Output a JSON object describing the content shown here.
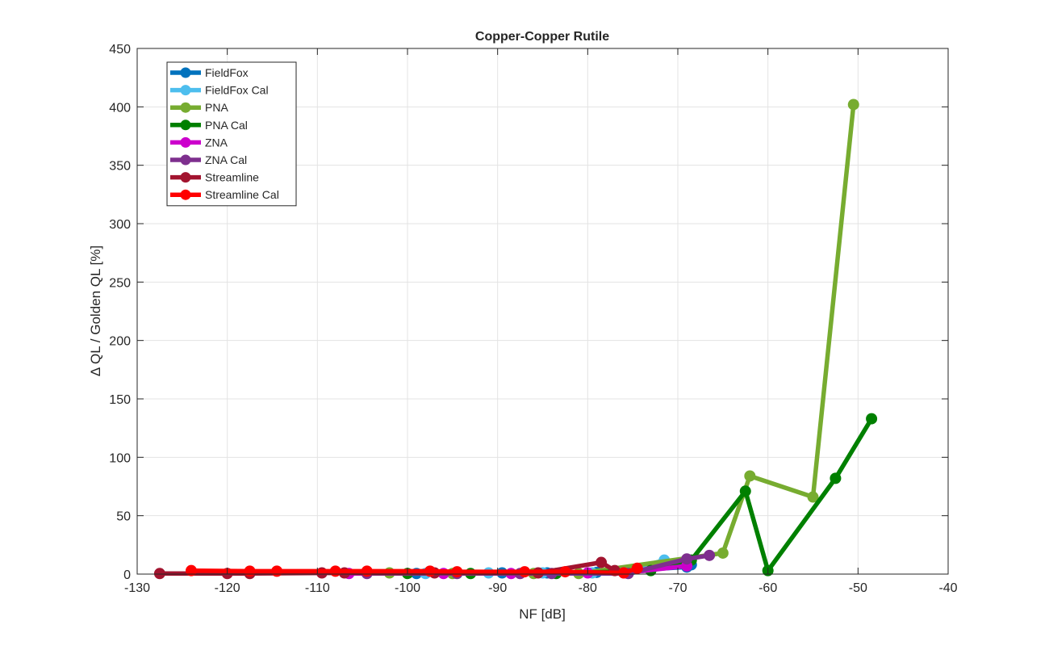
{
  "chart_data": {
    "type": "line",
    "title": "Copper-Copper Rutile",
    "xlabel": "NF [dB]",
    "ylabel": "Δ QL / Golden QL [%]",
    "xlim": [
      -130,
      -40
    ],
    "ylim": [
      0,
      450
    ],
    "xticks": [
      -130,
      -120,
      -110,
      -100,
      -90,
      -80,
      -70,
      -60,
      -50,
      -40
    ],
    "yticks": [
      0,
      50,
      100,
      150,
      200,
      250,
      300,
      350,
      400,
      450
    ],
    "grid": true,
    "legend_position": "top-left",
    "series": [
      {
        "name": "FieldFox",
        "color": "#0072BD",
        "x": [
          -99,
          -89.5,
          -84.5,
          -79,
          -69,
          -68.5
        ],
        "y": [
          0.5,
          1,
          1,
          1.5,
          6,
          8
        ]
      },
      {
        "name": "FieldFox Cal",
        "color": "#4DBEEE",
        "x": [
          -98,
          -91,
          -85,
          -79.5,
          -75,
          -71.5
        ],
        "y": [
          0.5,
          1,
          1,
          1,
          4,
          12
        ]
      },
      {
        "name": "PNA",
        "color": "#77AC30",
        "x": [
          -102,
          -95,
          -86,
          -81,
          -65,
          -62,
          -55,
          -50.5
        ],
        "y": [
          1,
          0.5,
          0.5,
          0.5,
          18,
          84,
          66,
          402
        ]
      },
      {
        "name": "PNA Cal",
        "color": "#008000",
        "x": [
          -100,
          -93,
          -83.5,
          -73,
          -68.5,
          -62.5,
          -60,
          -52.5,
          -48.5
        ],
        "y": [
          0.5,
          0.5,
          0.5,
          3,
          12,
          71,
          3,
          82,
          133
        ]
      },
      {
        "name": "ZNA",
        "color": "#CC00CC",
        "x": [
          -106.5,
          -96,
          -88.5,
          -80,
          -76,
          -69
        ],
        "y": [
          0.5,
          0.5,
          0.5,
          1,
          1,
          7
        ]
      },
      {
        "name": "ZNA Cal",
        "color": "#7E2F8E",
        "x": [
          -104.5,
          -94.5,
          -87.5,
          -84,
          -75.5,
          -69,
          -66.5
        ],
        "y": [
          0.5,
          0.5,
          0.5,
          0.5,
          0.5,
          13,
          16
        ]
      },
      {
        "name": "Streamline",
        "color": "#A2142F",
        "x": [
          -127.5,
          -120,
          -117.5,
          -109.5,
          -107,
          -97,
          -85.5,
          -78.5,
          -77
        ],
        "y": [
          0.5,
          0.5,
          0.5,
          1,
          1,
          1,
          1,
          10,
          3
        ]
      },
      {
        "name": "Streamline Cal",
        "color": "#FF0000",
        "x": [
          -124,
          -117.5,
          -114.5,
          -108,
          -104.5,
          -97.5,
          -94.5,
          -87,
          -82.5,
          -76,
          -74.5
        ],
        "y": [
          3,
          2.5,
          2.5,
          2.5,
          2.5,
          2.5,
          2,
          2,
          2,
          1,
          5
        ]
      }
    ]
  }
}
